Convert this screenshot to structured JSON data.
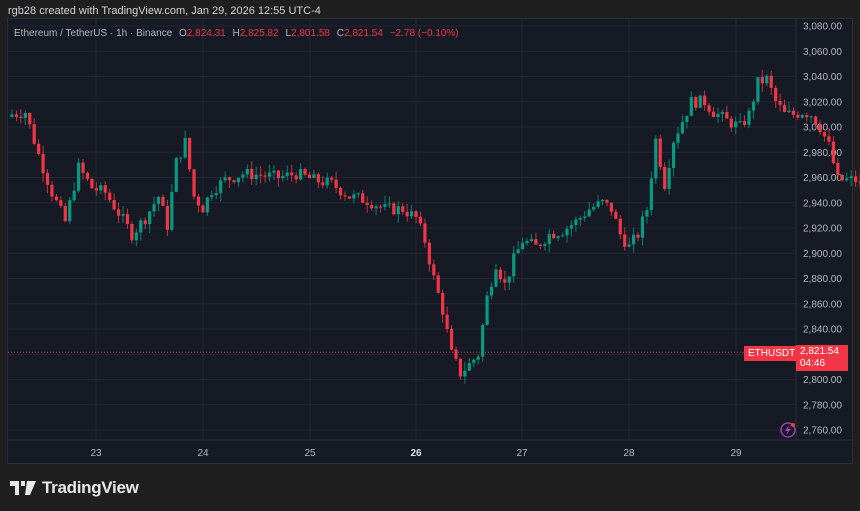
{
  "caption": "rgb28 created with TradingView.com, Jan 29, 2026 12:55 UTC-4",
  "legend": {
    "symbol": "Ethereum / TetherUS · 1h · Binance",
    "o_label": "O",
    "o_value": "2,824.31",
    "h_label": "H",
    "h_value": "2,825.82",
    "l_label": "L",
    "l_value": "2,801.58",
    "c_label": "C",
    "c_value": "2,821.54",
    "change": "−2.78 (−0.10%)"
  },
  "price_tag": {
    "symbol": "ETHUSDT",
    "price": "2,821.54",
    "countdown": "04:46"
  },
  "logo": {
    "text": "TradingView"
  },
  "colors": {
    "up": "#089981",
    "down": "#f23645",
    "background": "#161a25",
    "grid": "#232733",
    "alert": "#b03fc9"
  },
  "chart_data": {
    "type": "candlestick",
    "title": "Ethereum / TetherUS · 1h · Binance",
    "xlabel": "",
    "ylabel": "",
    "ylim": [
      2750,
      3085
    ],
    "y_ticks": [
      "3,080.00",
      "3,060.00",
      "3,040.00",
      "3,020.00",
      "3,000.00",
      "2,980.00",
      "2,960.00",
      "2,940.00",
      "2,920.00",
      "2,900.00",
      "2,880.00",
      "2,860.00",
      "2,840.00",
      "2,820.00",
      "2,800.00",
      "2,780.00",
      "2,760.00"
    ],
    "x_ticks": [
      "23",
      "24",
      "25",
      "26",
      "27",
      "28",
      "29"
    ],
    "last_price": 2821.54,
    "ohlc_sample": [
      [
        3010,
        3016,
        3004,
        3014
      ],
      [
        3014,
        3018,
        2998,
        3002
      ],
      [
        3002,
        3005,
        2975,
        2978
      ],
      [
        2978,
        2990,
        2968,
        2986
      ],
      [
        2986,
        3000,
        2952,
        2958
      ],
      [
        2958,
        2962,
        2900,
        2910
      ],
      [
        2910,
        2915,
        2870,
        2912
      ],
      [
        2912,
        2935,
        2895,
        2928
      ],
      [
        2928,
        2960,
        2920,
        2955
      ],
      [
        2955,
        2958,
        2918,
        2922
      ],
      [
        2922,
        2938,
        2910,
        2935
      ],
      [
        2935,
        2948,
        2925,
        2945
      ]
    ]
  }
}
